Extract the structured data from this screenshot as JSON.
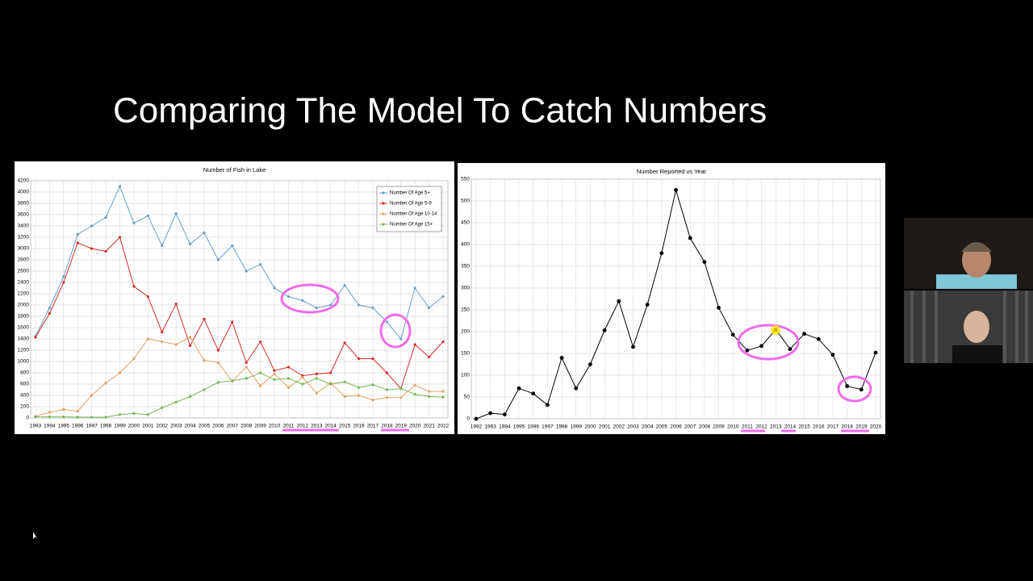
{
  "title": "Comparing The Model To Catch Numbers",
  "chart_data": [
    {
      "type": "line",
      "title": "Number of Fish in Lake",
      "categories": [
        "1993",
        "1994",
        "1995",
        "1996",
        "1997",
        "1998",
        "1999",
        "2000",
        "2001",
        "2002",
        "2003",
        "2004",
        "2005",
        "2006",
        "2007",
        "2008",
        "2009",
        "2010",
        "2011",
        "2012",
        "2013",
        "2014",
        "2015",
        "2016",
        "2017",
        "2018",
        "2019",
        "2020",
        "2021",
        "2022"
      ],
      "series": [
        {
          "name": "Number Of Age 5+",
          "color": "#6a9cc8",
          "values": [
            1450,
            1950,
            2500,
            3250,
            3400,
            3550,
            4100,
            3450,
            3580,
            3050,
            3620,
            3080,
            3280,
            2800,
            3050,
            2600,
            2720,
            2300,
            2150,
            2080,
            1950,
            2000,
            2350,
            2000,
            1950,
            1700,
            1400,
            2300,
            1950,
            2150
          ]
        },
        {
          "name": "Number Of Age 5-9",
          "color": "#d42a2a",
          "values": [
            1430,
            1850,
            2400,
            3100,
            3000,
            2950,
            3200,
            2330,
            2150,
            1520,
            2020,
            1280,
            1750,
            1200,
            1700,
            980,
            1350,
            840,
            900,
            750,
            780,
            800,
            1330,
            1050,
            1050,
            800,
            520,
            1300,
            1080,
            1350
          ]
        },
        {
          "name": "Number Of Age 10-14",
          "color": "#e3a063",
          "values": [
            30,
            100,
            150,
            120,
            400,
            620,
            800,
            1050,
            1400,
            1350,
            1300,
            1430,
            1020,
            980,
            650,
            900,
            570,
            780,
            540,
            720,
            440,
            620,
            380,
            400,
            320,
            360,
            360,
            580,
            470,
            470
          ]
        },
        {
          "name": "Number Of Age 15+",
          "color": "#7ab356",
          "values": [
            20,
            20,
            20,
            15,
            15,
            15,
            60,
            80,
            60,
            180,
            280,
            380,
            500,
            630,
            660,
            700,
            800,
            680,
            700,
            600,
            700,
            600,
            640,
            540,
            590,
            500,
            520,
            420,
            380,
            370
          ]
        }
      ],
      "ylim": [
        0,
        4200
      ],
      "yticks": [
        0,
        200,
        400,
        600,
        800,
        1000,
        1200,
        1400,
        1600,
        1800,
        2000,
        2200,
        2400,
        2600,
        2800,
        3000,
        3200,
        3400,
        3600,
        3800,
        4000,
        4200
      ],
      "grid": true,
      "legend": "upper right"
    },
    {
      "type": "line",
      "title": "Number Reported vs Year",
      "categories": [
        "1992",
        "1993",
        "1994",
        "1995",
        "1996",
        "1997",
        "1998",
        "1999",
        "2000",
        "2001",
        "2002",
        "2003",
        "2004",
        "2005",
        "2006",
        "2007",
        "2008",
        "2009",
        "2010",
        "2011",
        "2012",
        "2013",
        "2014",
        "2015",
        "2016",
        "2017",
        "2018",
        "2019",
        "2020"
      ],
      "values": [
        0,
        13,
        10,
        70,
        58,
        32,
        140,
        70,
        125,
        203,
        270,
        165,
        262,
        380,
        525,
        415,
        360,
        255,
        193,
        157,
        167,
        205,
        160,
        195,
        183,
        147,
        75,
        67,
        152
      ],
      "color": "#000000",
      "ylim": [
        0,
        550
      ],
      "yticks": [
        0,
        50,
        100,
        150,
        200,
        250,
        300,
        350,
        400,
        450,
        500,
        550
      ],
      "grid": true
    }
  ]
}
